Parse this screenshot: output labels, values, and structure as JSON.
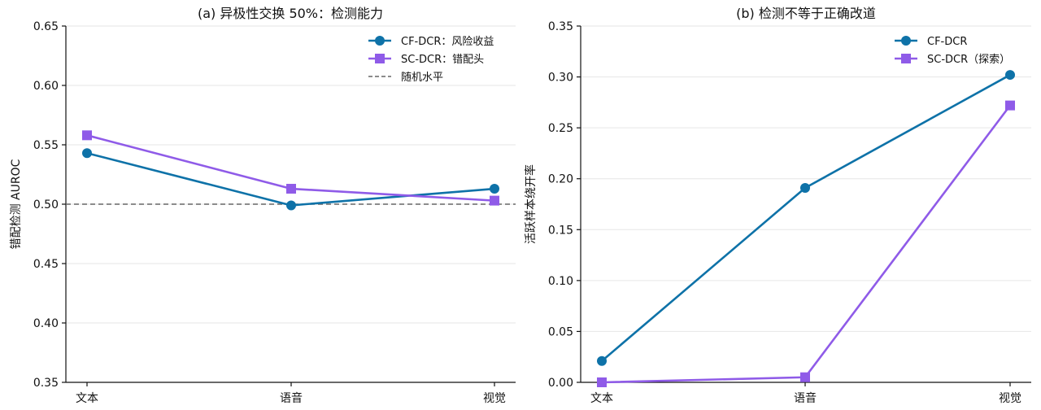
{
  "chart_data": [
    {
      "type": "line",
      "title": "(a) 异极性交换 50%：检测能力",
      "xlabel": "",
      "ylabel": "错配检测 AUROC",
      "categories": [
        "文本",
        "语音",
        "视觉"
      ],
      "ylim": [
        0.35,
        0.65
      ],
      "yticks": [
        "0.35",
        "0.40",
        "0.45",
        "0.50",
        "0.55",
        "0.60",
        "0.65"
      ],
      "ytick_values": [
        0.35,
        0.4,
        0.45,
        0.5,
        0.55,
        0.6,
        0.65
      ],
      "grid": "horizontal",
      "legend_position": "top-right",
      "series": [
        {
          "name": "CF-DCR：风险收益",
          "values": [
            0.543,
            0.499,
            0.513
          ],
          "color": "#0e72a8",
          "marker": "circle"
        },
        {
          "name": "SC-DCR：错配头",
          "values": [
            0.558,
            0.513,
            0.503
          ],
          "color": "#8f5be8",
          "marker": "square"
        }
      ],
      "reference_line": {
        "name": "随机水平",
        "value": 0.5,
        "color": "#666666",
        "style": "dashed"
      }
    },
    {
      "type": "line",
      "title": "(b) 检测不等于正确改道",
      "xlabel": "",
      "ylabel": "活跃样本绕开率",
      "categories": [
        "文本",
        "语音",
        "视觉"
      ],
      "ylim": [
        0.0,
        0.35
      ],
      "yticks": [
        "0.00",
        "0.05",
        "0.10",
        "0.15",
        "0.20",
        "0.25",
        "0.30",
        "0.35"
      ],
      "ytick_values": [
        0.0,
        0.05,
        0.1,
        0.15,
        0.2,
        0.25,
        0.3,
        0.35
      ],
      "grid": "horizontal",
      "legend_position": "top-right",
      "series": [
        {
          "name": "CF-DCR",
          "values": [
            0.021,
            0.191,
            0.302
          ],
          "color": "#0e72a8",
          "marker": "circle"
        },
        {
          "name": "SC-DCR（探索）",
          "values": [
            0.0,
            0.005,
            0.272
          ],
          "color": "#8f5be8",
          "marker": "square"
        }
      ]
    }
  ]
}
